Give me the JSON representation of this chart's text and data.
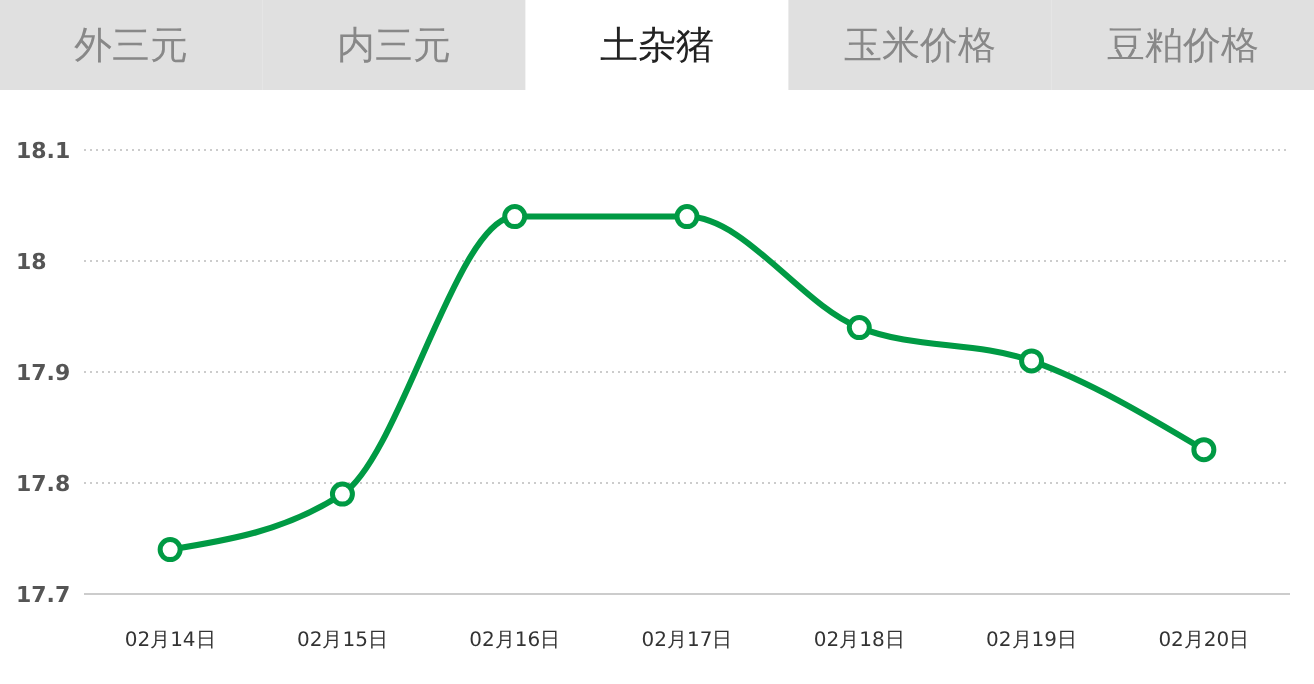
{
  "chart_data": {
    "type": "line",
    "annotations": [
      "外三元",
      "内三元",
      "土杂猪",
      "玉米价格",
      "豆粕价格"
    ],
    "categories": [
      "02月14日",
      "02月15日",
      "02月16日",
      "02月17日",
      "02月18日",
      "02月19日",
      "02月20日"
    ],
    "series": [
      {
        "color": "#009a44",
        "values": [
          17.74,
          17.79,
          18.04,
          18.04,
          17.94,
          17.91,
          17.83
        ]
      }
    ],
    "ylim": [
      17.7,
      18.1
    ],
    "yticks": [
      17.7,
      17.8,
      17.9,
      18,
      18.1
    ],
    "grid": "y",
    "marker": "circle",
    "line_style": "solid"
  }
}
